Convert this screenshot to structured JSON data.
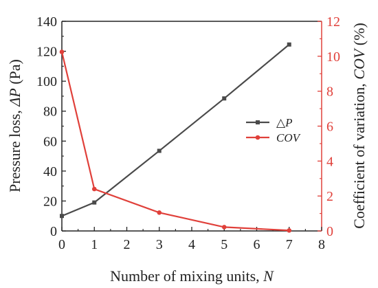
{
  "chart_data": {
    "type": "line",
    "x": [
      0,
      1,
      3,
      5,
      7
    ],
    "xlim": [
      0,
      8
    ],
    "xticks": [
      "0",
      "1",
      "2",
      "3",
      "4",
      "5",
      "6",
      "7",
      "8"
    ],
    "xlabel": {
      "text": "Number of mixing units, ",
      "symbol": "N"
    },
    "y_left": {
      "label_text": "Pressure loss, ",
      "label_symbol": "ΔP",
      "label_unit": " (Pa)",
      "ylim": [
        0,
        140
      ],
      "ticks": [
        "0",
        "20",
        "40",
        "60",
        "80",
        "100",
        "120",
        "140"
      ],
      "color": "#222222"
    },
    "y_right": {
      "label_text": "Coefficient of variation, ",
      "label_symbol": "COV",
      "label_unit": " (%)",
      "ylim": [
        0,
        12
      ],
      "ticks": [
        "0",
        "2",
        "4",
        "6",
        "8",
        "10",
        "12"
      ],
      "color": "#e0403a"
    },
    "series": [
      {
        "name": "△P",
        "axis": "left",
        "marker": "square",
        "color": "#4a4a4a",
        "values": [
          10,
          19,
          53.5,
          88.5,
          124.5
        ]
      },
      {
        "name": "COV",
        "axis": "right",
        "marker": "circle",
        "color": "#e0403a",
        "values": [
          10.25,
          2.4,
          1.05,
          0.22,
          0.03
        ]
      }
    ],
    "legend_position": "center-right",
    "grid": false
  }
}
